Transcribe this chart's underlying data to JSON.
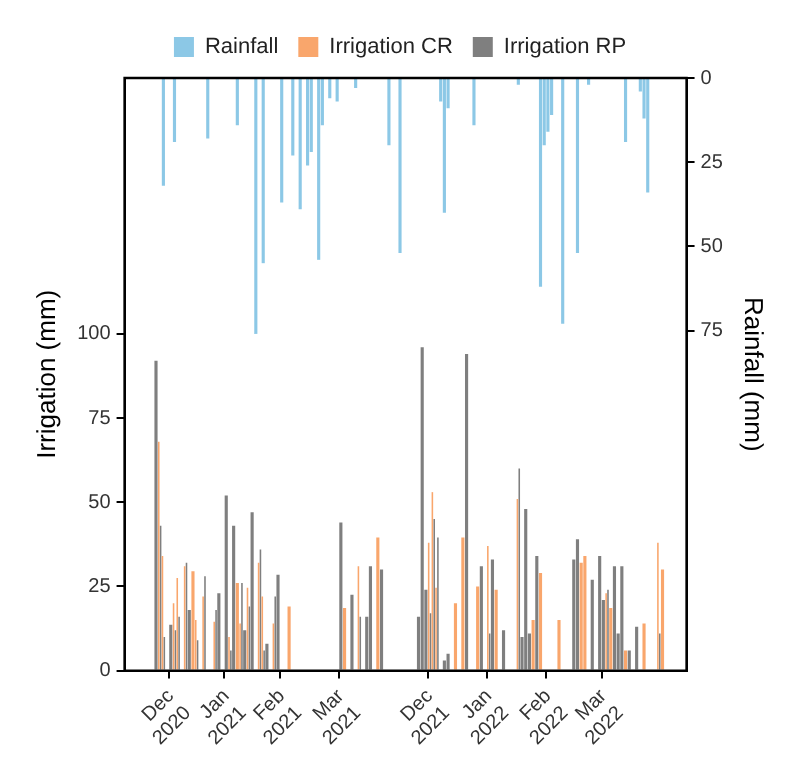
{
  "chart_data": {
    "type": "bar",
    "ylabel": "Irrigation (mm)",
    "y2label": "Rainfall (mm)",
    "legend": "top",
    "grid": false,
    "ylim": [
      0,
      176
    ],
    "y2lim": [
      176,
      0
    ],
    "yticks": [
      0,
      25,
      50,
      75,
      100
    ],
    "y2ticks": [
      0,
      25,
      50,
      75
    ],
    "categories": [
      null,
      null,
      null,
      null,
      null,
      null,
      null,
      null,
      null,
      null,
      null,
      null,
      "Dec 2020",
      null,
      null,
      null,
      null,
      null,
      null,
      null,
      null,
      null,
      null,
      null,
      null,
      null,
      null,
      "Jan 2021",
      null,
      null,
      null,
      null,
      null,
      null,
      null,
      null,
      null,
      null,
      null,
      null,
      null,
      null,
      "Feb 2021",
      null,
      null,
      null,
      null,
      null,
      null,
      null,
      null,
      null,
      null,
      null,
      null,
      null,
      null,
      null,
      "Mar 2021",
      null,
      null,
      null,
      null,
      null,
      null,
      null,
      null,
      null,
      null,
      null,
      null,
      null,
      null,
      null,
      null,
      null,
      null,
      null,
      null,
      null,
      null,
      null,
      "Dec 2021",
      null,
      null,
      null,
      null,
      null,
      null,
      null,
      null,
      null,
      null,
      null,
      null,
      null,
      null,
      null,
      "Jan 2022",
      null,
      null,
      null,
      null,
      null,
      null,
      null,
      null,
      null,
      null,
      null,
      null,
      null,
      null,
      null,
      "Feb 2022",
      null,
      null,
      null,
      null,
      null,
      null,
      null,
      null,
      null,
      null,
      null,
      null,
      null,
      null,
      "Mar 2022",
      null,
      null,
      null,
      null,
      null,
      null,
      null,
      null,
      null,
      null,
      null,
      null,
      null,
      null,
      null,
      null,
      null,
      null,
      null,
      null,
      null,
      null
    ],
    "series": [
      {
        "name": "Rainfall",
        "color": "#8cc8e6",
        "axis": "y2",
        "values": [
          null,
          null,
          null,
          null,
          null,
          null,
          null,
          null,
          null,
          null,
          32,
          null,
          null,
          19,
          null,
          null,
          null,
          null,
          null,
          null,
          null,
          null,
          18,
          null,
          null,
          null,
          null,
          null,
          null,
          null,
          14,
          null,
          null,
          null,
          null,
          76,
          null,
          55,
          null,
          null,
          null,
          null,
          37,
          null,
          null,
          23,
          null,
          39,
          null,
          26,
          22,
          null,
          54,
          14,
          null,
          6,
          null,
          7,
          null,
          null,
          null,
          null,
          3,
          null,
          null,
          null,
          null,
          null,
          null,
          null,
          null,
          20,
          null,
          null,
          52,
          null,
          null,
          null,
          null,
          null,
          null,
          null,
          null,
          null,
          null,
          7,
          40,
          9,
          null,
          null,
          null,
          null,
          null,
          null,
          14,
          null,
          null,
          null,
          null,
          null,
          null,
          null,
          null,
          null,
          null,
          null,
          2,
          null,
          null,
          null,
          null,
          null,
          62,
          20,
          16,
          11,
          null,
          null,
          73,
          null,
          null,
          null,
          52,
          null,
          null,
          2,
          null,
          null,
          null,
          null,
          null,
          null,
          null,
          null,
          null,
          19,
          null,
          null,
          null,
          4,
          12,
          34,
          null,
          null,
          null,
          null,
          null,
          null,
          null,
          null,
          null,
          null
        ]
      },
      {
        "name": "Irrigation CR",
        "color": "#f9a66c",
        "values": [
          null,
          null,
          null,
          null,
          null,
          null,
          null,
          null,
          null,
          68,
          34,
          null,
          null,
          20,
          27.5,
          null,
          31,
          null,
          29.5,
          15,
          null,
          22,
          null,
          null,
          14.5,
          null,
          null,
          null,
          10,
          null,
          26,
          14,
          null,
          24.6,
          null,
          null,
          32,
          22,
          null,
          null,
          14,
          null,
          null,
          null,
          19,
          null,
          null,
          null,
          null,
          null,
          null,
          null,
          null,
          null,
          null,
          null,
          null,
          null,
          null,
          18.6,
          null,
          null,
          null,
          31,
          null,
          null,
          null,
          null,
          39.5,
          null,
          null,
          null,
          null,
          null,
          null,
          null,
          null,
          null,
          null,
          null,
          null,
          null,
          38,
          53,
          24.6,
          null,
          null,
          null,
          null,
          20,
          null,
          39.5,
          null,
          null,
          null,
          25,
          null,
          null,
          37,
          null,
          24,
          null,
          null,
          null,
          null,
          null,
          51,
          null,
          null,
          null,
          15,
          null,
          29,
          null,
          null,
          null,
          null,
          15,
          null,
          null,
          null,
          null,
          null,
          32,
          34,
          null,
          null,
          null,
          null,
          null,
          23,
          18.6,
          null,
          null,
          null,
          6,
          null,
          null,
          null,
          null,
          14,
          null,
          null,
          null,
          38,
          30,
          null,
          null,
          null,
          null,
          null,
          null
        ]
      },
      {
        "name": "Irrigation RP",
        "color": "#7f7f7f",
        "values": [
          null,
          null,
          null,
          null,
          null,
          null,
          null,
          null,
          92,
          43,
          10,
          null,
          13.6,
          12,
          16,
          null,
          32,
          18,
          null,
          9,
          null,
          28,
          null,
          null,
          18,
          23,
          null,
          52,
          6,
          43,
          null,
          26,
          12,
          19,
          47,
          null,
          36,
          6,
          8,
          null,
          22,
          28.5,
          null,
          null,
          null,
          null,
          null,
          null,
          null,
          null,
          null,
          null,
          null,
          null,
          null,
          null,
          null,
          null,
          44,
          null,
          null,
          22.5,
          null,
          16,
          null,
          16,
          31,
          null,
          null,
          30,
          null,
          null,
          null,
          null,
          null,
          null,
          null,
          null,
          null,
          16,
          96,
          24,
          17,
          45,
          39.5,
          null,
          3,
          5,
          null,
          null,
          null,
          null,
          94,
          null,
          null,
          null,
          31,
          null,
          11,
          33,
          null,
          null,
          12,
          null,
          null,
          null,
          60,
          10,
          48,
          11,
          null,
          34,
          null,
          null,
          null,
          null,
          null,
          null,
          null,
          null,
          null,
          33,
          39,
          null,
          null,
          null,
          27,
          null,
          34,
          21,
          24,
          null,
          31,
          11,
          31,
          null,
          6,
          null,
          13,
          null,
          null,
          null,
          null,
          null,
          11,
          null,
          null,
          null,
          null,
          null,
          null,
          null
        ]
      }
    ]
  }
}
